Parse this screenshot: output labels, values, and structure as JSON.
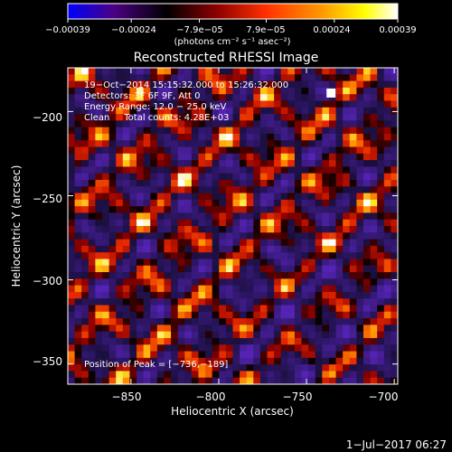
{
  "chart_data": {
    "type": "heatmap",
    "title": "Reconstructed RHESSI Image",
    "xlabel": "Heliocentric X (arcsec)",
    "ylabel": "Heliocentric Y (arcsec)",
    "xlim": [
      -886,
      -698
    ],
    "ylim": [
      -362,
      -174
    ],
    "x_ticks": [
      -850,
      -800,
      -750,
      -700
    ],
    "x_tick_labels": [
      "−850",
      "−800",
      "−750",
      "−700"
    ],
    "y_ticks": [
      -350,
      -300,
      -250,
      -200
    ],
    "y_tick_labels": [
      "−350",
      "−300",
      "−250",
      "−200"
    ],
    "grid": false,
    "colorbar": {
      "range": [
        -0.00039,
        0.00039
      ],
      "tick_values": [
        -0.00039,
        -0.00024,
        -7.9e-05,
        7.9e-05,
        0.00024,
        0.00039
      ],
      "tick_labels": [
        "−0.00039",
        "−0.00024",
        "−7.9e−05",
        "7.9e−05",
        "0.00024",
        "0.00039"
      ],
      "unit_label": "(photons cm⁻² s⁻¹ asec⁻²)",
      "colors": [
        "#0000ff",
        "#4b0082",
        "#000000",
        "#8b0000",
        "#ff3000",
        "#ffa000",
        "#ffff00",
        "#ffffff"
      ]
    },
    "annotations": [
      "19−Oct−2014 15:15:32.000 to 15:26:32.000",
      "Detectors: 3F 6F 9F, Att 0",
      "Energy Range: 12.0 − 25.0 keV",
      "Clean     Total counts: 4.28E+03"
    ],
    "peak_label": "Position of Peak = [−736,−189]",
    "peak": [
      -736,
      -189
    ],
    "timestamp": "1−Jul−2017 06:27"
  }
}
